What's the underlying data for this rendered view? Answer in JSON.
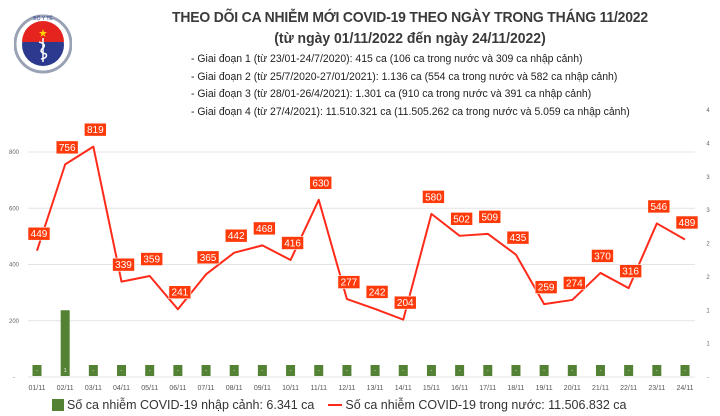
{
  "logo": {
    "text": "BỘ Y TẾ",
    "subtext": "MINISTRY OF HEALTH"
  },
  "header": {
    "title": "THEO DÕI CA NHIỄM MỚI COVID-19 THEO NGÀY TRONG THÁNG 11/2022",
    "subtitle": "(từ ngày 01/11/2022 đến ngày 24/11/2022)",
    "bullets": [
      "- Giai đoạn 1 (từ 23/01-24/7/2020): 415 ca (106 ca trong nước và 309 ca nhập cảnh)",
      "- Giai đoạn 2 (từ 25/7/2020-27/01/2021): 1.136 ca (554 ca trong nước và 582 ca nhập cảnh)",
      "- Giai đoạn 3 (từ 28/01-26/4/2021): 1.301 ca (910 ca trong nước và 391 ca nhập cảnh)",
      "- Giai đoạn 4 (từ 27/4/2021): 11.510.321 ca (11.505.262 ca trong nước và 5.059 ca nhập cảnh)"
    ]
  },
  "chart_data": {
    "type": "bar+line",
    "categories": [
      "01/11",
      "02/11",
      "03/11",
      "04/11",
      "05/11",
      "06/11",
      "07/11",
      "08/11",
      "09/11",
      "10/11",
      "11/11",
      "12/11",
      "13/11",
      "14/11",
      "15/11",
      "16/11",
      "17/11",
      "18/11",
      "19/11",
      "20/11",
      "21/11",
      "22/11",
      "23/11",
      "24/11"
    ],
    "series": [
      {
        "name": "Số ca nhiễm COVID-19 nhập cảnh: 6.341 ca",
        "type": "bar",
        "axis": "right",
        "color": "#548235",
        "values": [
          0,
          1,
          0,
          0,
          0,
          0,
          0,
          0,
          0,
          0,
          0,
          0,
          0,
          0,
          0,
          0,
          0,
          0,
          0,
          0,
          0,
          0,
          0,
          0
        ],
        "labels": [
          "-",
          "1",
          "-",
          "-",
          "-",
          "-",
          "-",
          "-",
          "-",
          "-",
          "-",
          "-",
          "-",
          "-",
          "-",
          "-",
          "-",
          "-",
          "-",
          "-",
          "-",
          "-",
          "-",
          "-"
        ]
      },
      {
        "name": "Số ca nhiễm COVID-19 trong nước: 11.506.832 ca",
        "type": "line",
        "axis": "left",
        "color": "#ff2a1a",
        "label_bg": "#ff3a0a",
        "values": [
          449,
          756,
          819,
          339,
          359,
          241,
          365,
          442,
          468,
          416,
          630,
          277,
          242,
          204,
          580,
          502,
          509,
          435,
          259,
          274,
          370,
          316,
          546,
          489
        ]
      }
    ],
    "left_axis": {
      "ticks": [
        "-",
        "200",
        "400",
        "600",
        "800"
      ],
      "tick_values": [
        0,
        200,
        400,
        600,
        800
      ],
      "range": [
        0,
        800
      ]
    },
    "right_axis": {
      "ticks": [
        "-",
        "1",
        "1",
        "2",
        "2",
        "3",
        "3",
        "4",
        "4"
      ],
      "tick_values": [
        0,
        0.5,
        1,
        1.5,
        2,
        2.5,
        3,
        3.5,
        4
      ],
      "range": [
        0,
        4
      ]
    },
    "grid": true,
    "legend": "bottom"
  }
}
